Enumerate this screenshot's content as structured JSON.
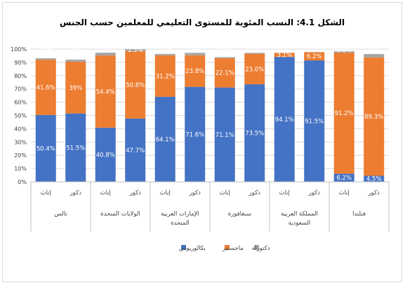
{
  "chart_data": {
    "type": "bar",
    "stacked": true,
    "percent": true,
    "title": "الشكل 4.1: النسب المئوية للمستوى التعليمي للمعلمين حسب الجنس",
    "groups": [
      {
        "name": "تالس",
        "name_lines": [
          "تالس"
        ],
        "bars": [
          "إناث",
          "ذكور"
        ]
      },
      {
        "name": "الولايات المتحدة",
        "name_lines": [
          "الولايات المتحدة"
        ],
        "bars": [
          "إناث",
          "ذكور"
        ]
      },
      {
        "name": "الإمارات العربية المتحدة",
        "name_lines": [
          "الإمارات العربية",
          "المتحدة"
        ],
        "bars": [
          "إناث",
          "ذكور"
        ]
      },
      {
        "name": "سنغافورة",
        "name_lines": [
          "سنغافورة"
        ],
        "bars": [
          "إناث",
          "ذكور"
        ]
      },
      {
        "name": "المملكة العربية السعودية",
        "name_lines": [
          "المملكة العربية",
          "السعودية"
        ],
        "bars": [
          "إناث",
          "ذكور"
        ]
      },
      {
        "name": "فنلندا",
        "name_lines": [
          "فنلندا"
        ],
        "bars": [
          "إناث",
          "ذكور"
        ]
      }
    ],
    "series": [
      {
        "name": "بكالوريوس",
        "color": "#4472c4",
        "values": [
          50.4,
          51.5,
          40.8,
          47.7,
          64.1,
          71.6,
          71.1,
          73.5,
          94.1,
          91.5,
          6.2,
          4.5
        ],
        "labels": [
          "50.4%",
          "51.5%",
          "40.8%",
          "47.7%",
          "64.1%",
          "71.6%",
          "71.1%",
          "73.5%",
          "94.1%",
          "91.5%",
          "6.2%",
          "4.5%"
        ]
      },
      {
        "name": "ماجستير",
        "color": "#ed7d31",
        "values": [
          41.6,
          39.0,
          54.4,
          50.8,
          31.2,
          23.8,
          22.1,
          23.0,
          3.1,
          6.2,
          91.2,
          89.3
        ],
        "labels": [
          "41.6%",
          "39%",
          "54.4%",
          "50.8%",
          "31.2%",
          "23.8%",
          "22.1%",
          "23.0%",
          "3.1%",
          "6.2%",
          "91.2%",
          "89.3%"
        ]
      },
      {
        "name": "دكتوراه",
        "color": "#a5a5a5",
        "values": [
          1.1,
          1.6,
          2.1,
          1.5,
          1.1,
          1.8,
          0.8,
          0.7,
          0.1,
          0.1,
          1.1,
          2.5
        ],
        "labels": [
          "1.1%",
          "1.6%",
          "2.1%",
          "1.5%",
          "1.1%",
          "1.8%",
          "0.8%",
          "0.7%",
          "0.1%",
          "0.1%",
          "1.1%",
          "2.5%"
        ]
      }
    ],
    "yticks": [
      "0%",
      "10%",
      "20%",
      "30%",
      "40%",
      "50%",
      "60%",
      "70%",
      "80%",
      "90%",
      "100%"
    ],
    "ylim": [
      0,
      100
    ],
    "grid": true,
    "legend_position": "bottom"
  }
}
